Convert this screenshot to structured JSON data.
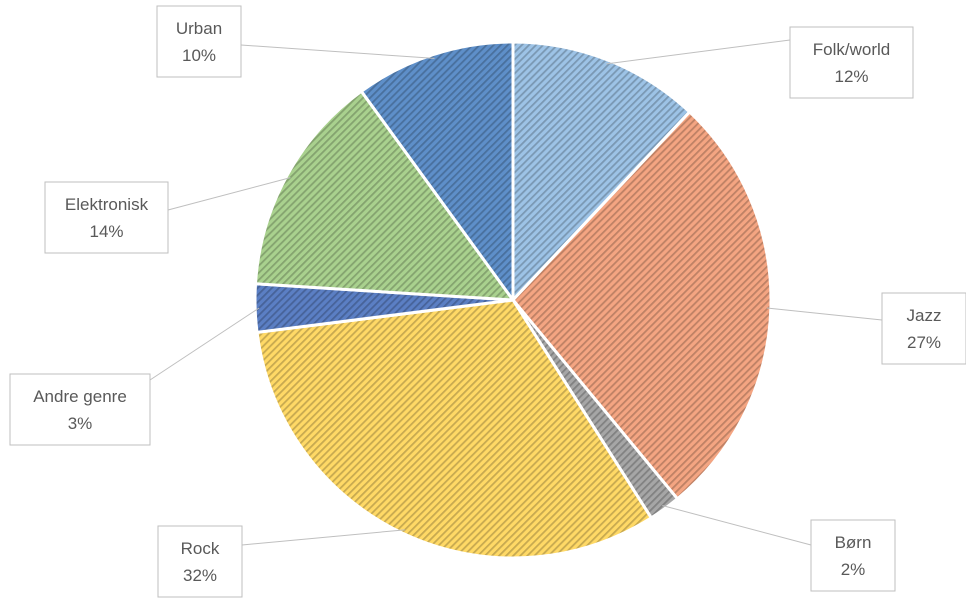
{
  "chart_data": {
    "type": "pie",
    "title": "",
    "slices": [
      {
        "label": "Folk/world",
        "value": 12,
        "value_label": "12%",
        "color": "#9dc3e6"
      },
      {
        "label": "Jazz",
        "value": 27,
        "value_label": "27%",
        "color": "#f4a582"
      },
      {
        "label": "Børn",
        "value": 2,
        "value_label": "2%",
        "color": "#a6a6a6"
      },
      {
        "label": "Rock",
        "value": 32,
        "value_label": "32%",
        "color": "#ffd966"
      },
      {
        "label": "Andre genre",
        "value": 3,
        "value_label": "3%",
        "color": "#5b7fc4"
      },
      {
        "label": "Elektronisk",
        "value": 14,
        "value_label": "14%",
        "color": "#a9d18e"
      },
      {
        "label": "Urban",
        "value": 10,
        "value_label": "10%",
        "color": "#5e8fc9"
      }
    ],
    "start_angle_deg": 0,
    "direction": "clockwise",
    "fill_pattern": "diagonal-stripes",
    "legend": "none"
  }
}
